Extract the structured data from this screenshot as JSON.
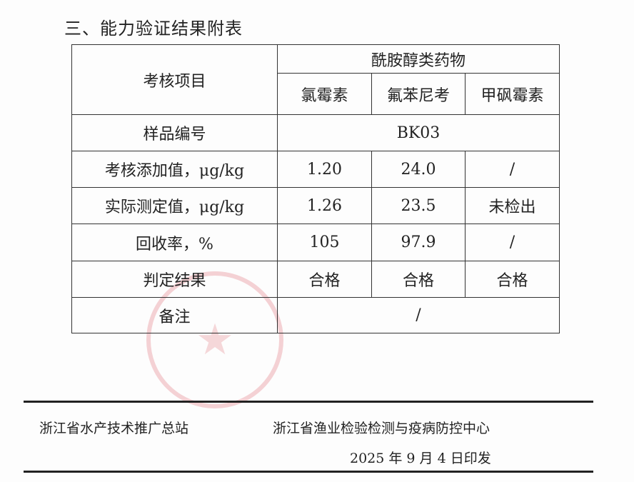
{
  "title": "三、能力验证结果附表",
  "table": {
    "header_item": "考核项目",
    "group": "酰胺醇类药物",
    "drugs": [
      "氯霉素",
      "氟苯尼考",
      "甲砜霉素"
    ],
    "sample_label": "样品编号",
    "sample_id": "BK03",
    "rows": [
      {
        "label": "考核添加值，μg/kg",
        "values": [
          "1.20",
          "24.0",
          "/"
        ]
      },
      {
        "label": "实际测定值，μg/kg",
        "values": [
          "1.26",
          "23.5",
          "未检出"
        ]
      },
      {
        "label": "回收率，%",
        "values": [
          "105",
          "97.9",
          "/"
        ]
      },
      {
        "label": "判定结果",
        "values": [
          "合格",
          "合格",
          "合格"
        ]
      }
    ],
    "remark_label": "备注",
    "remark": "/"
  },
  "footer": {
    "org1": "浙江省水产技术推广总站",
    "org2": "浙江省渔业检验检测与疫病防控中心",
    "date": "2025 年 9 月 4 日印发"
  },
  "seal_color": "#dc505a"
}
